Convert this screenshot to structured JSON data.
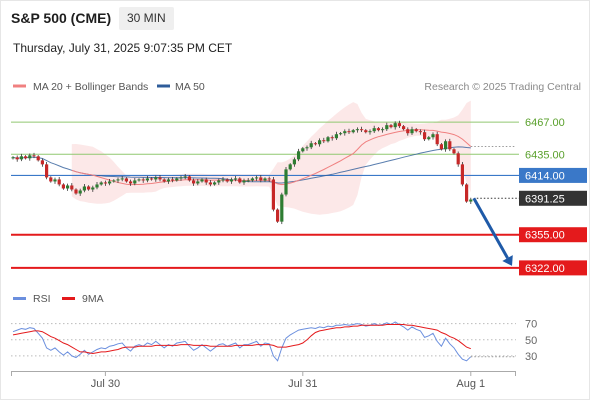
{
  "header": {
    "symbol": "S&P 500 (CME)",
    "timeframe": "30 MIN",
    "datetime": "Thursday, July 31, 2025 9:07:35 PM CET"
  },
  "colors": {
    "bollinger": "#f08080",
    "ma50": "#2e5c9a",
    "resistance": "#90c870",
    "pivot": "#3a78c8",
    "support": "#e41a1c",
    "price": "#333333",
    "candle_up": "#2e7d32",
    "candle_down": "#c62828",
    "rsi": "#6b8fde",
    "rsi_ma": "#e41a1c",
    "arrow": "#1f5aa8"
  },
  "chart_data": [
    {
      "type": "candlestick",
      "title": "",
      "legend": [
        {
          "name": "MA 20 + Bollinger Bands",
          "color": "#f08080"
        },
        {
          "name": "MA 50",
          "color": "#2e5c9a"
        }
      ],
      "watermark": "Research © 2025 Trading Central",
      "ylim": [
        6300,
        6495
      ],
      "y_scale": "linear",
      "y_ticks_hidden": true,
      "x_ticks": [
        {
          "label": "Jul 30",
          "bar": 22
        },
        {
          "label": "Jul 31",
          "bar": 69
        },
        {
          "label": "Aug 1",
          "bar": 109
        }
      ],
      "levels": [
        {
          "label": "6467.00",
          "value": 6467.0,
          "kind": "resistance"
        },
        {
          "label": "6435.00",
          "value": 6435.0,
          "kind": "resistance"
        },
        {
          "label": "6414.00",
          "value": 6414.0,
          "kind": "pivot"
        },
        {
          "label": "6391.25",
          "value": 6391.25,
          "kind": "price"
        },
        {
          "label": "6355.00",
          "value": 6355.0,
          "kind": "support"
        },
        {
          "label": "6322.00",
          "value": 6322.0,
          "kind": "support"
        }
      ],
      "projection": {
        "from": 6391.25,
        "to": 6322.0,
        "direction": "down"
      },
      "close": [
        6432,
        6430,
        6433,
        6431,
        6434,
        6433,
        6429,
        6425,
        6412,
        6408,
        6410,
        6405,
        6401,
        6404,
        6400,
        6396,
        6399,
        6403,
        6400,
        6402,
        6405,
        6407,
        6406,
        6408,
        6409,
        6410,
        6411,
        6408,
        6406,
        6409,
        6410,
        6409,
        6411,
        6410,
        6412,
        6410,
        6408,
        6410,
        6409,
        6411,
        6412,
        6413,
        6409,
        6406,
        6408,
        6410,
        6407,
        6405,
        6407,
        6409,
        6410,
        6408,
        6410,
        6411,
        6407,
        6409,
        6409,
        6411,
        6412,
        6409,
        6411,
        6410,
        6380,
        6368,
        6395,
        6420,
        6425,
        6430,
        6438,
        6441,
        6442,
        6446,
        6445,
        6449,
        6448,
        6452,
        6451,
        6455,
        6456,
        6458,
        6457,
        6459,
        6460,
        6459,
        6457,
        6458,
        6461,
        6459,
        6460,
        6464,
        6462,
        6466,
        6463,
        6460,
        6456,
        6460,
        6458,
        6457,
        6450,
        6452,
        6455,
        6445,
        6440,
        6448,
        6440,
        6436,
        6425,
        6405,
        6388,
        6390
      ]
    },
    {
      "type": "line",
      "title": "",
      "legend": [
        {
          "name": "RSI",
          "color": "#6b8fde"
        },
        {
          "name": "9MA",
          "color": "#e41a1c"
        }
      ],
      "y_ticks": [
        70,
        50,
        30
      ],
      "ylim": [
        20,
        77
      ],
      "series": [
        {
          "name": "RSI",
          "values": [
            60,
            62,
            64,
            63,
            65,
            64,
            58,
            52,
            40,
            37,
            40,
            35,
            31,
            35,
            30,
            28,
            32,
            37,
            32,
            35,
            38,
            40,
            39,
            42,
            43,
            45,
            46,
            40,
            36,
            42,
            44,
            42,
            46,
            44,
            48,
            44,
            40,
            44,
            42,
            46,
            47,
            48,
            42,
            37,
            40,
            44,
            40,
            36,
            40,
            44,
            45,
            42,
            44,
            46,
            40,
            44,
            44,
            46,
            48,
            42,
            46,
            45,
            30,
            24,
            40,
            52,
            56,
            59,
            62,
            63,
            64,
            65,
            64,
            66,
            65,
            67,
            66,
            68,
            68,
            69,
            68,
            69,
            70,
            69,
            67,
            68,
            70,
            68,
            69,
            71,
            69,
            72,
            69,
            66,
            62,
            66,
            63,
            61,
            53,
            55,
            58,
            48,
            42,
            52,
            45,
            40,
            32,
            26,
            24,
            29
          ]
        },
        {
          "name": "9MA",
          "values": [
            56,
            57,
            58,
            59,
            60,
            61,
            61,
            60,
            57,
            54,
            52,
            49,
            46,
            44,
            41,
            38,
            35,
            35,
            34,
            33,
            34,
            35,
            35,
            36,
            37,
            38,
            40,
            41,
            41,
            41,
            42,
            42,
            42,
            42,
            43,
            43,
            43,
            43,
            43,
            43,
            44,
            44,
            44,
            43,
            43,
            43,
            43,
            42,
            42,
            42,
            42,
            42,
            42,
            43,
            43,
            43,
            43,
            43,
            44,
            44,
            44,
            44,
            43,
            41,
            41,
            41,
            42,
            43,
            44,
            46,
            50,
            55,
            59,
            61,
            62,
            63,
            64,
            65,
            65,
            66,
            66,
            67,
            67,
            68,
            68,
            68,
            68,
            68,
            68,
            69,
            69,
            69,
            69,
            69,
            68,
            68,
            67,
            66,
            65,
            64,
            63,
            62,
            59,
            57,
            54,
            52,
            49,
            45,
            41,
            39
          ]
        }
      ]
    }
  ]
}
